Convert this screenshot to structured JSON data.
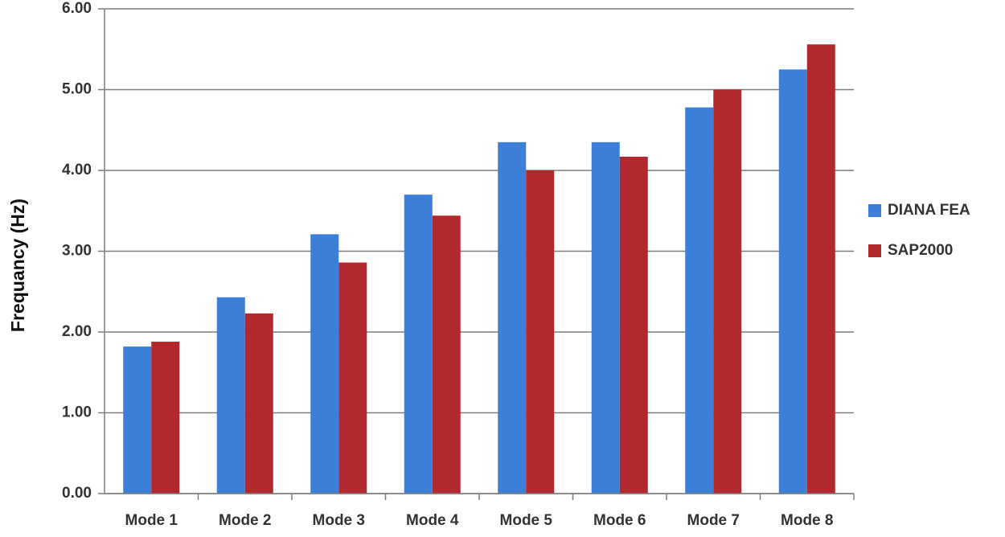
{
  "chart_data": {
    "type": "bar",
    "y_label": "Frequancy (Hz)",
    "categories": [
      "Mode 1",
      "Mode 2",
      "Mode 3",
      "Mode 4",
      "Mode 5",
      "Mode 6",
      "Mode 7",
      "Mode 8"
    ],
    "series": [
      {
        "name": "DIANA FEA",
        "color": "#3b7fd9",
        "values": [
          1.82,
          2.43,
          3.21,
          3.7,
          4.35,
          4.35,
          4.78,
          5.25
        ]
      },
      {
        "name": "SAP2000",
        "color": "#b3282d",
        "values": [
          1.88,
          2.23,
          2.86,
          3.44,
          4.0,
          4.17,
          5.0,
          5.56
        ]
      }
    ],
    "ylim": [
      0,
      6
    ],
    "yticks": [
      {
        "value": 0,
        "label": "0.00"
      },
      {
        "value": 1,
        "label": "1.00"
      },
      {
        "value": 2,
        "label": "2.00"
      },
      {
        "value": 3,
        "label": "3.00"
      },
      {
        "value": 4,
        "label": "4.00"
      },
      {
        "value": 5,
        "label": "5.00"
      },
      {
        "value": 6,
        "label": "6.00"
      }
    ],
    "grid": true,
    "legend": "right"
  }
}
